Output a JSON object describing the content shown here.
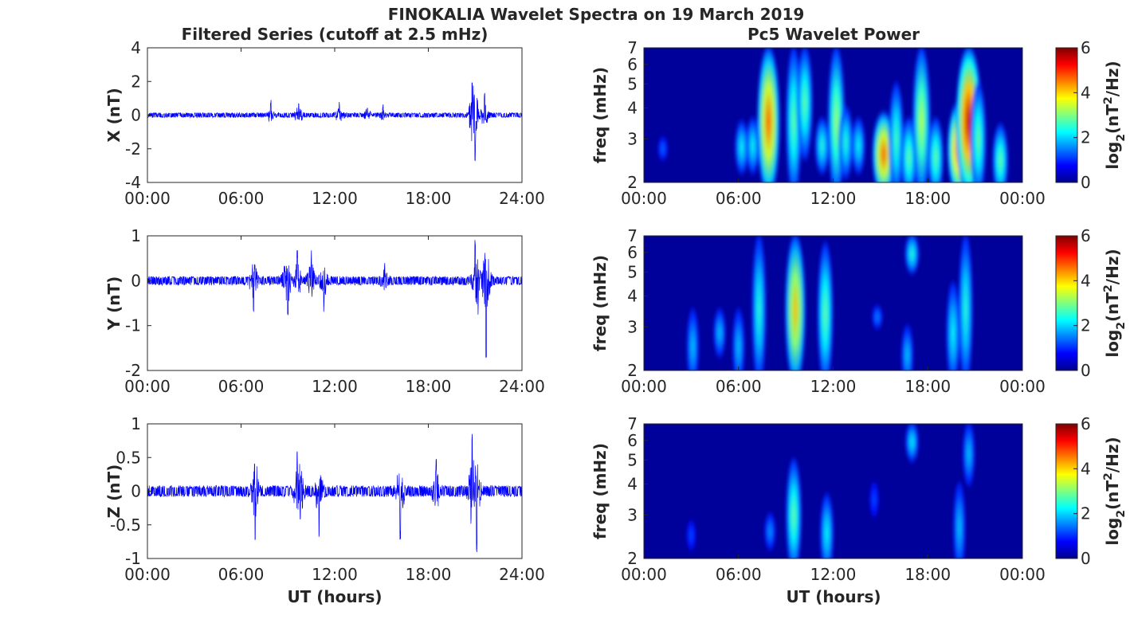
{
  "chart_data": {
    "title": "FINOKALIA Wavelet Spectra on 19 March 2019",
    "left_title": "Filtered Series (cutoff at 2.5 mHz)",
    "right_title": "Pc5 Wavelet Power",
    "xlabel": "UT (hours)",
    "colors": {
      "series": "#0000ff",
      "background": "#00009a"
    },
    "series_panels": [
      {
        "type": "line",
        "ylabel": "X (nT)",
        "ylim": [
          -4,
          4
        ],
        "yticks": [
          "-4",
          "-2",
          "0",
          "2",
          "4"
        ],
        "xticks": [
          "00:00",
          "06:00",
          "12:00",
          "18:00",
          "24:00"
        ],
        "noise": 0.1,
        "seed": 11,
        "bursts": [
          {
            "t": 7.9,
            "amp": 0.8
          },
          {
            "t": 9.7,
            "amp": 0.8
          },
          {
            "t": 12.3,
            "amp": 0.7
          },
          {
            "t": 14.1,
            "amp": 0.5
          },
          {
            "t": 15.1,
            "amp": 0.55
          },
          {
            "t": 20.8,
            "amp": 2.1
          },
          {
            "t": 21.0,
            "amp": -2.2
          },
          {
            "t": 21.6,
            "amp": 1.2
          }
        ]
      },
      {
        "type": "line",
        "ylabel": "Y (nT)",
        "ylim": [
          -2,
          1
        ],
        "yticks": [
          "-2",
          "-1",
          "0",
          "1"
        ],
        "xticks": [
          "00:00",
          "06:00",
          "12:00",
          "18:00",
          "24:00"
        ],
        "noise": 0.07,
        "seed": 23,
        "bursts": [
          {
            "t": 6.8,
            "amp": -0.6
          },
          {
            "t": 8.8,
            "amp": 0.4
          },
          {
            "t": 9.0,
            "amp": -0.75
          },
          {
            "t": 9.6,
            "amp": 0.6
          },
          {
            "t": 10.5,
            "amp": 0.6
          },
          {
            "t": 11.3,
            "amp": -0.6
          },
          {
            "t": 15.2,
            "amp": 0.35
          },
          {
            "t": 21.0,
            "amp": 0.8
          },
          {
            "t": 21.2,
            "amp": -0.5
          },
          {
            "t": 21.7,
            "amp": -1.65
          }
        ]
      },
      {
        "type": "line",
        "ylabel": "Z (nT)",
        "ylim": [
          -1,
          1
        ],
        "yticks": [
          "-1",
          "-0.5",
          "0",
          "0.5",
          "1"
        ],
        "xticks": [
          "00:00",
          "06:00",
          "12:00",
          "18:00",
          "24:00"
        ],
        "noise": 0.06,
        "seed": 37,
        "bursts": [
          {
            "t": 6.9,
            "amp": -0.65
          },
          {
            "t": 9.6,
            "amp": 0.55
          },
          {
            "t": 9.8,
            "amp": -0.5
          },
          {
            "t": 11.0,
            "amp": -0.6
          },
          {
            "t": 16.2,
            "amp": -0.65
          },
          {
            "t": 18.5,
            "amp": 0.4
          },
          {
            "t": 20.8,
            "amp": 0.85
          },
          {
            "t": 21.1,
            "amp": -0.75
          }
        ]
      }
    ],
    "spectra_panels": [
      {
        "type": "heatmap",
        "ylabel": "freq (mHz)",
        "ylim": [
          2,
          7
        ],
        "yticks": [
          "2",
          "3",
          "4",
          "5",
          "6",
          "7"
        ],
        "xticks": [
          "00:00",
          "06:00",
          "12:00",
          "18:00",
          "00:00"
        ],
        "clabel": "log2(nT2/Hz)",
        "clim": [
          0,
          6
        ],
        "cticks": [
          "0",
          "2",
          "4",
          "6"
        ],
        "blobs": [
          [
            7.9,
            2,
            7,
            4.6
          ],
          [
            6.2,
            2.2,
            3.5,
            2
          ],
          [
            6.9,
            2.2,
            3.6,
            2
          ],
          [
            9.5,
            2,
            7,
            2.6
          ],
          [
            10.2,
            2.5,
            7,
            2.6
          ],
          [
            11.3,
            2.2,
            3.6,
            2.2
          ],
          [
            12.2,
            2,
            7,
            3
          ],
          [
            12.8,
            2.1,
            4,
            2.2
          ],
          [
            13.6,
            2.2,
            3.6,
            2
          ],
          [
            15.2,
            2,
            3.8,
            4.6
          ],
          [
            16.0,
            2,
            5,
            2.4
          ],
          [
            16.8,
            2,
            3.6,
            2.6
          ],
          [
            17.6,
            2,
            7,
            3.2
          ],
          [
            18.5,
            2,
            3.6,
            2.6
          ],
          [
            20.0,
            2,
            4.2,
            5
          ],
          [
            20.6,
            2,
            7,
            5.6
          ],
          [
            21.2,
            2,
            5,
            2.6
          ],
          [
            22.6,
            2,
            3.4,
            2.6
          ],
          [
            1.2,
            2.5,
            3,
            1
          ]
        ]
      },
      {
        "type": "heatmap",
        "ylabel": "freq (mHz)",
        "ylim": [
          2,
          7
        ],
        "yticks": [
          "2",
          "3",
          "4",
          "5",
          "6",
          "7"
        ],
        "xticks": [
          "00:00",
          "06:00",
          "12:00",
          "18:00",
          "00:00"
        ],
        "clabel": "log2(nT2/Hz)",
        "clim": [
          0,
          6
        ],
        "cticks": [
          "0",
          "2",
          "4",
          "6"
        ],
        "blobs": [
          [
            3.1,
            2,
            3.5,
            1.6
          ],
          [
            4.8,
            2.3,
            3.5,
            1.6
          ],
          [
            6.0,
            2,
            3.5,
            1.6
          ],
          [
            7.3,
            2,
            7,
            2.2
          ],
          [
            9.6,
            2,
            7,
            4
          ],
          [
            11.5,
            2,
            6.5,
            2.6
          ],
          [
            14.8,
            3,
            3.6,
            1.2
          ],
          [
            16.7,
            2,
            3,
            1.6
          ],
          [
            17.0,
            5,
            7,
            2.2
          ],
          [
            19.6,
            2,
            4.5,
            2
          ],
          [
            20.4,
            2,
            7,
            2.2
          ]
        ]
      },
      {
        "type": "heatmap",
        "ylabel": "freq (mHz)",
        "ylim": [
          2,
          7
        ],
        "yticks": [
          "2",
          "3",
          "4",
          "5",
          "6",
          "7"
        ],
        "xticks": [
          "00:00",
          "06:00",
          "12:00",
          "18:00",
          "00:00"
        ],
        "clabel": "log2(nT2/Hz)",
        "clim": [
          0,
          6
        ],
        "cticks": [
          "0",
          "2",
          "4",
          "6"
        ],
        "blobs": [
          [
            9.5,
            2,
            5,
            2.6
          ],
          [
            11.6,
            2,
            3.6,
            2
          ],
          [
            8.0,
            2.2,
            3,
            1.3
          ],
          [
            17.0,
            5,
            7,
            1.9
          ],
          [
            20.0,
            2,
            4,
            1.6
          ],
          [
            20.6,
            4,
            7,
            1.6
          ],
          [
            14.6,
            3,
            4,
            0.8
          ],
          [
            3,
            2.2,
            2.8,
            0.8
          ]
        ]
      }
    ]
  }
}
